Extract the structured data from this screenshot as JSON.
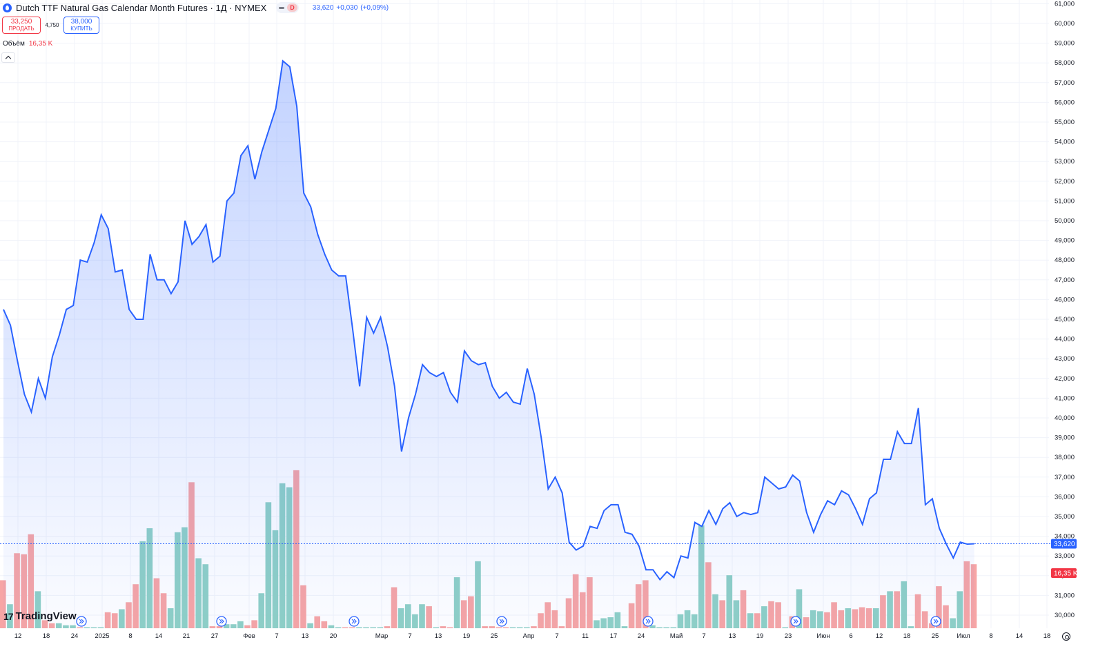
{
  "legend": {
    "symbol_title": "Dutch TTF Natural Gas Calendar Month Futures · 1Д · NYMEX",
    "badge": "D",
    "last_price": "33,620",
    "change": "+0,030",
    "change_pct": "(+0,09%)"
  },
  "trade": {
    "sell_price": "33,250",
    "sell_label": "ПРОДАТЬ",
    "spread": "4,750",
    "buy_price": "38,000",
    "buy_label": "КУПИТЬ"
  },
  "volume_legend": {
    "label": "Объём",
    "value": "16,35 K"
  },
  "price_tag": "33,620",
  "volume_tag": "16,35 K",
  "logo_text": "TradingView",
  "colors": {
    "line": "#2962ff",
    "up_volume": "#8fd0c6",
    "down_volume": "#f7a5a5",
    "sell": "#f23645",
    "buy": "#2962ff"
  },
  "chart_data": {
    "type": "area",
    "y_axis": {
      "min": 30,
      "max": 61,
      "step": 1,
      "labels": [
        "30,000",
        "31,000",
        "32,000",
        "33,000",
        "34,000",
        "35,000",
        "36,000",
        "37,000",
        "38,000",
        "39,000",
        "40,000",
        "41,000",
        "42,000",
        "43,000",
        "44,000",
        "45,000",
        "46,000",
        "47,000",
        "48,000",
        "49,000",
        "50,000",
        "51,000",
        "52,000",
        "53,000",
        "54,000",
        "55,000",
        "56,000",
        "57,000",
        "58,000",
        "59,000",
        "60,000",
        "61,000"
      ]
    },
    "x_tick_labels": [
      "12",
      "18",
      "24",
      "2025",
      "8",
      "14",
      "21",
      "27",
      "Фев",
      "7",
      "13",
      "20",
      "Мар",
      "7",
      "13",
      "19",
      "25",
      "Апр",
      "7",
      "11",
      "17",
      "24",
      "Май",
      "7",
      "13",
      "19",
      "23",
      "Июн",
      "6",
      "12",
      "18",
      "25",
      "Июл",
      "8",
      "14",
      "18"
    ],
    "price_series": [
      45.5,
      44.7,
      42.9,
      41.2,
      40.3,
      42.0,
      41.0,
      43.1,
      44.2,
      45.5,
      45.7,
      48.0,
      47.9,
      48.9,
      50.3,
      49.6,
      47.4,
      47.5,
      45.5,
      45.0,
      45.0,
      48.3,
      47.0,
      47.0,
      46.3,
      46.9,
      50.0,
      48.8,
      49.2,
      49.8,
      47.9,
      48.2,
      51.0,
      51.4,
      53.3,
      53.8,
      52.1,
      53.5,
      54.6,
      55.7,
      58.1,
      57.8,
      55.8,
      51.4,
      50.7,
      49.3,
      48.3,
      47.5,
      47.2,
      47.2,
      44.5,
      41.6,
      45.1,
      44.3,
      45.1,
      43.6,
      41.6,
      38.3,
      40.0,
      41.2,
      42.7,
      42.3,
      42.1,
      42.3,
      41.3,
      40.8,
      43.4,
      42.9,
      42.7,
      42.8,
      41.6,
      41.0,
      41.3,
      40.8,
      40.7,
      42.5,
      41.2,
      39.0,
      36.4,
      37.0,
      36.2,
      33.7,
      33.3,
      33.5,
      34.5,
      34.4,
      35.3,
      35.6,
      35.6,
      34.2,
      34.1,
      33.5,
      32.3,
      32.3,
      31.8,
      32.2,
      31.9,
      33.0,
      32.9,
      34.7,
      34.5,
      35.3,
      34.6,
      35.4,
      35.7,
      35.0,
      35.2,
      35.1,
      35.2,
      37.0,
      36.7,
      36.4,
      36.5,
      37.1,
      36.8,
      35.2,
      34.2,
      35.1,
      35.8,
      35.6,
      36.3,
      36.1,
      35.4,
      34.6,
      35.9,
      36.2,
      37.9,
      37.9,
      39.3,
      38.7,
      38.7,
      40.5,
      35.6,
      35.9,
      34.4,
      33.6,
      32.9,
      33.7,
      33.6,
      33.62
    ],
    "volume_series": [
      [
        4.8,
        0
      ],
      [
        2.4,
        1
      ],
      [
        7.5,
        0
      ],
      [
        7.4,
        0
      ],
      [
        9.4,
        0
      ],
      [
        3.7,
        1
      ],
      [
        0.8,
        0
      ],
      [
        0.5,
        0
      ],
      [
        0.5,
        1
      ],
      [
        0.3,
        1
      ],
      [
        0.3,
        1
      ],
      [
        0.1,
        0
      ],
      [
        0.1,
        1
      ],
      [
        0.1,
        1
      ],
      [
        0.1,
        1
      ],
      [
        1.6,
        0
      ],
      [
        1.5,
        0
      ],
      [
        1.9,
        1
      ],
      [
        2.6,
        0
      ],
      [
        4.4,
        0
      ],
      [
        8.7,
        1
      ],
      [
        10.0,
        1
      ],
      [
        5.0,
        0
      ],
      [
        3.5,
        0
      ],
      [
        2.0,
        1
      ],
      [
        9.6,
        1
      ],
      [
        10.1,
        1
      ],
      [
        14.6,
        0
      ],
      [
        7.0,
        1
      ],
      [
        6.4,
        1
      ],
      [
        0.2,
        0
      ],
      [
        0.2,
        0
      ],
      [
        0.4,
        1
      ],
      [
        0.4,
        1
      ],
      [
        0.7,
        1
      ],
      [
        0.3,
        0
      ],
      [
        0.8,
        0
      ],
      [
        3.5,
        1
      ],
      [
        12.6,
        1
      ],
      [
        9.8,
        1
      ],
      [
        14.5,
        1
      ],
      [
        14.1,
        1
      ],
      [
        15.8,
        0
      ],
      [
        4.3,
        0
      ],
      [
        0.5,
        1
      ],
      [
        1.2,
        0
      ],
      [
        0.7,
        0
      ],
      [
        0.3,
        1
      ],
      [
        0.1,
        1
      ],
      [
        0.1,
        0
      ],
      [
        0.1,
        0
      ],
      [
        0.1,
        1
      ],
      [
        0.1,
        1
      ],
      [
        0.1,
        1
      ],
      [
        0.1,
        1
      ],
      [
        0.2,
        0
      ],
      [
        4.1,
        0
      ],
      [
        2.0,
        1
      ],
      [
        2.4,
        1
      ],
      [
        1.4,
        1
      ],
      [
        2.4,
        1
      ],
      [
        2.2,
        0
      ],
      [
        0.1,
        1
      ],
      [
        0.2,
        0
      ],
      [
        0.1,
        0
      ],
      [
        5.1,
        1
      ],
      [
        2.8,
        0
      ],
      [
        3.2,
        0
      ],
      [
        6.7,
        1
      ],
      [
        0.2,
        0
      ],
      [
        0.2,
        0
      ],
      [
        0.1,
        0
      ],
      [
        0.1,
        0
      ],
      [
        0.1,
        1
      ],
      [
        0.1,
        1
      ],
      [
        0.1,
        1
      ],
      [
        0.2,
        0
      ],
      [
        1.5,
        0
      ],
      [
        2.6,
        0
      ],
      [
        1.8,
        0
      ],
      [
        0.2,
        0
      ],
      [
        3.0,
        0
      ],
      [
        5.4,
        0
      ],
      [
        3.6,
        0
      ],
      [
        5.1,
        0
      ],
      [
        0.8,
        1
      ],
      [
        1.0,
        1
      ],
      [
        1.1,
        1
      ],
      [
        1.6,
        1
      ],
      [
        0.2,
        1
      ],
      [
        2.5,
        0
      ],
      [
        4.4,
        0
      ],
      [
        4.8,
        0
      ],
      [
        0.3,
        1
      ],
      [
        0.1,
        1
      ],
      [
        0.1,
        1
      ],
      [
        0.1,
        1
      ],
      [
        1.4,
        1
      ],
      [
        1.8,
        1
      ],
      [
        1.4,
        1
      ],
      [
        10.3,
        1
      ],
      [
        6.6,
        0
      ],
      [
        3.4,
        1
      ],
      [
        2.8,
        0
      ],
      [
        5.3,
        1
      ],
      [
        2.8,
        1
      ],
      [
        3.8,
        0
      ],
      [
        1.5,
        1
      ],
      [
        1.5,
        0
      ],
      [
        2.2,
        1
      ],
      [
        2.7,
        0
      ],
      [
        2.6,
        0
      ],
      [
        0.1,
        1
      ],
      [
        1.2,
        0
      ],
      [
        3.9,
        1
      ],
      [
        1.1,
        0
      ],
      [
        1.8,
        1
      ],
      [
        1.7,
        1
      ],
      [
        1.6,
        0
      ],
      [
        2.6,
        0
      ],
      [
        1.8,
        0
      ],
      [
        2.0,
        1
      ],
      [
        1.9,
        0
      ],
      [
        2.1,
        0
      ],
      [
        2.0,
        0
      ],
      [
        2.0,
        1
      ],
      [
        3.3,
        0
      ],
      [
        3.7,
        1
      ],
      [
        3.7,
        0
      ],
      [
        4.7,
        1
      ],
      [
        0.2,
        1
      ],
      [
        3.4,
        0
      ],
      [
        1.7,
        0
      ],
      [
        0.5,
        0
      ],
      [
        4.2,
        0
      ],
      [
        2.3,
        0
      ],
      [
        1.0,
        1
      ],
      [
        3.7,
        1
      ],
      [
        6.7,
        0
      ],
      [
        6.4,
        0
      ]
    ]
  }
}
